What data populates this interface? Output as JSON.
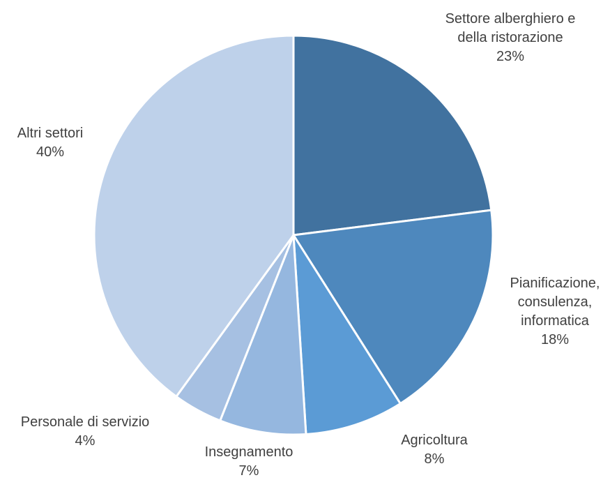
{
  "chart_data": {
    "type": "pie",
    "title": "",
    "start_angle_deg": 0,
    "direction": "clockwise",
    "slices": [
      {
        "label_lines": [
          "Settore alberghiero e",
          "della ristorazione"
        ],
        "value": 23,
        "value_label": "23%",
        "color": "#41729f"
      },
      {
        "label_lines": [
          "Pianificazione,",
          "consulenza,",
          "informatica"
        ],
        "value": 18,
        "value_label": "18%",
        "color": "#4e88bd"
      },
      {
        "label_lines": [
          "Agricoltura"
        ],
        "value": 8,
        "value_label": "8%",
        "color": "#5b9bd5"
      },
      {
        "label_lines": [
          "Insegnamento"
        ],
        "value": 7,
        "value_label": "7%",
        "color": "#95b7df"
      },
      {
        "label_lines": [
          "Personale di servizio"
        ],
        "value": 4,
        "value_label": "4%",
        "color": "#a6c0e2"
      },
      {
        "label_lines": [
          "Altri settori"
        ],
        "value": 40,
        "value_label": "40%",
        "color": "#bed1ea"
      }
    ]
  }
}
